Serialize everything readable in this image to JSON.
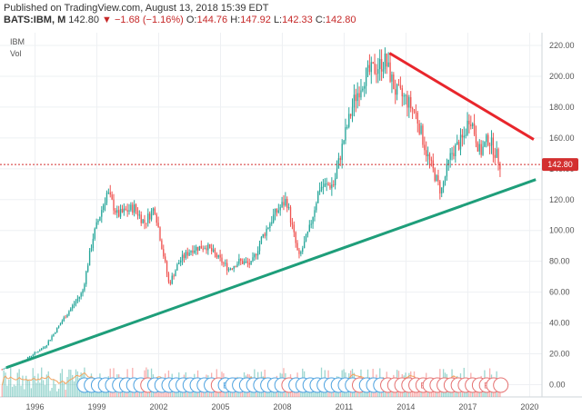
{
  "header": {
    "published": "Published on TradingView.com, August 13, 2018 15:39 EDT",
    "symbol": "BATS:IBM, M",
    "last": "142.80",
    "change": "−1.68 (−1.16%)",
    "o_label": "O:",
    "o_value": "144.76",
    "h_label": "H:",
    "h_value": "147.92",
    "l_label": "L:",
    "l_value": "142.33",
    "c_label": "C:",
    "c_value": "142.80"
  },
  "colors": {
    "up": "#26a69a",
    "down": "#ef5350",
    "trend_support": "#1e9e7a",
    "trend_resistance": "#e8262c",
    "price_line": "#d32f2f",
    "volume_ma": "#f4a460"
  },
  "chart_data": {
    "type": "candlestick",
    "title": "",
    "series_labels": [
      "IBM",
      "Vol"
    ],
    "ylim": [
      0,
      225
    ],
    "y_ticks": [
      "220.00",
      "200.00",
      "180.00",
      "160.00",
      "140.00",
      "120.00",
      "100.00",
      "80.00",
      "60.00",
      "40.00",
      "20.00",
      "0.00"
    ],
    "y_tick_values": [
      220,
      200,
      180,
      160,
      140,
      120,
      100,
      80,
      60,
      40,
      20,
      0
    ],
    "x_range": [
      1994.3,
      2020.6
    ],
    "x_ticks": [
      "1996",
      "1999",
      "2002",
      "2005",
      "2008",
      "2011",
      "2014",
      "2017",
      "2020"
    ],
    "x_tick_values": [
      1996,
      1999,
      2002,
      2005,
      2008,
      2011,
      2014,
      2017,
      2020
    ],
    "last_price_label": "142.80",
    "last_price": 142.8,
    "price_path": [
      [
        1994.4,
        10
      ],
      [
        1995.5,
        16
      ],
      [
        1996.5,
        25
      ],
      [
        1997.5,
        45
      ],
      [
        1998.3,
        60
      ],
      [
        1998.8,
        95
      ],
      [
        1999.5,
        125
      ],
      [
        2000.0,
        110
      ],
      [
        2000.8,
        115
      ],
      [
        2001.3,
        105
      ],
      [
        2001.8,
        115
      ],
      [
        2002.5,
        65
      ],
      [
        2003.0,
        80
      ],
      [
        2003.6,
        88
      ],
      [
        2004.3,
        90
      ],
      [
        2004.9,
        82
      ],
      [
        2005.4,
        75
      ],
      [
        2005.9,
        80
      ],
      [
        2006.5,
        78
      ],
      [
        2007.0,
        95
      ],
      [
        2007.6,
        110
      ],
      [
        2008.2,
        120
      ],
      [
        2008.8,
        82
      ],
      [
        2009.3,
        100
      ],
      [
        2009.8,
        128
      ],
      [
        2010.5,
        130
      ],
      [
        2011.0,
        160
      ],
      [
        2011.5,
        185
      ],
      [
        2012.0,
        200
      ],
      [
        2012.5,
        205
      ],
      [
        2013.0,
        210
      ],
      [
        2013.5,
        190
      ],
      [
        2014.0,
        185
      ],
      [
        2014.5,
        175
      ],
      [
        2015.0,
        150
      ],
      [
        2015.7,
        125
      ],
      [
        2016.2,
        150
      ],
      [
        2016.8,
        160
      ],
      [
        2017.1,
        175
      ],
      [
        2017.6,
        150
      ],
      [
        2018.0,
        160
      ],
      [
        2018.6,
        142.8
      ]
    ],
    "volume_level": 0.6,
    "trendlines": [
      {
        "name": "support",
        "from": [
          1994.6,
          11
        ],
        "to": [
          2020.3,
          133
        ]
      },
      {
        "name": "resistance",
        "from": [
          2013.2,
          215
        ],
        "to": [
          2020.2,
          159
        ]
      }
    ],
    "dividend_markers": 60,
    "earnings_marker": "E"
  }
}
